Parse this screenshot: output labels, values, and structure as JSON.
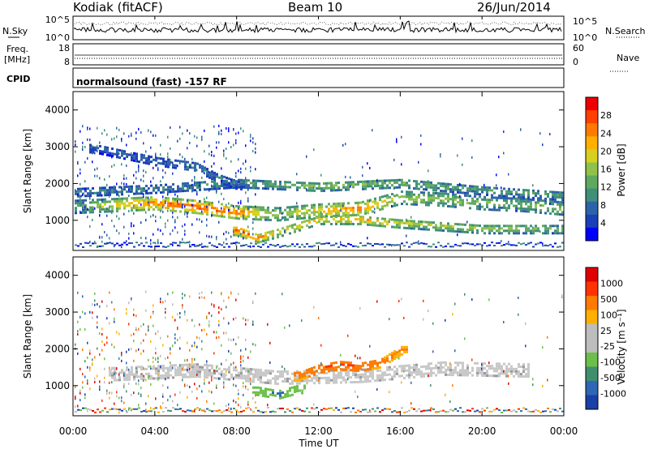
{
  "header": {
    "station": "Kodiak (fitACF)",
    "beam": "Beam 10",
    "date": "26/Jun/2014"
  },
  "noise_panel": {
    "left_label": "N.Sky",
    "right_label": "N.Search",
    "left_ticks": [
      "10^5",
      "10^0"
    ],
    "right_ticks": [
      "10^5",
      "10^0"
    ]
  },
  "freq_panel": {
    "left_label_1": "Freq.",
    "left_label_2": "[MHz]",
    "right_label": "Nave",
    "left_ticks": [
      "18",
      "8"
    ],
    "right_ticks": [
      "60",
      "0"
    ]
  },
  "cpid_panel": {
    "label": "CPID",
    "text": "normalsound (fast) -157 RF"
  },
  "x_axis": {
    "title": "Time UT",
    "ticks": [
      "00:00",
      "04:00",
      "08:00",
      "12:00",
      "16:00",
      "20:00",
      "00:00"
    ]
  },
  "power_panel": {
    "ylabel": "Slant Range [km]",
    "yticks": [
      "4000",
      "3000",
      "2000",
      "1000"
    ],
    "colorbar_title": "Power [dB]",
    "colorbar_ticks": [
      "28",
      "24",
      "20",
      "16",
      "12",
      "8",
      "4"
    ],
    "colors": [
      "#0000ff",
      "#1b3fb8",
      "#2e62a8",
      "#3f8f7a",
      "#5fa860",
      "#8fc24a",
      "#d8d020",
      "#ffb000",
      "#ff7a00",
      "#ff4000",
      "#ee0000"
    ]
  },
  "velocity_panel": {
    "ylabel": "Slant Range [km]",
    "yticks": [
      "4000",
      "3000",
      "2000",
      "1000"
    ],
    "colorbar_title": "Velocity [m s⁻¹]",
    "colorbar_ticks": [
      "1000",
      "500",
      "100",
      "25",
      "-25",
      "-100",
      "-500",
      "-1000"
    ],
    "colors": [
      "#1a3fa6",
      "#2f66b5",
      "#3f8f6e",
      "#6cc04a",
      "#bdbdbd",
      "#bdbdbd",
      "#ffb000",
      "#ff7a00",
      "#ff3300",
      "#e00000"
    ]
  },
  "chart_data": [
    {
      "type": "heatmap",
      "title": "Power [dB]",
      "xlabel": "Time UT",
      "ylabel": "Slant Range [km]",
      "x_range_hours": [
        0,
        24
      ],
      "ylim": [
        180,
        4500
      ],
      "color_range": [
        0,
        30
      ],
      "bands": [
        {
          "name": "main",
          "points": [
            [
              0,
              1400,
              10
            ],
            [
              2,
              1450,
              18
            ],
            [
              4,
              1500,
              22
            ],
            [
              6,
              1400,
              24
            ],
            [
              8,
              1250,
              22
            ],
            [
              10,
              1200,
              14
            ],
            [
              12,
              1300,
              18
            ],
            [
              14,
              1350,
              22
            ],
            [
              16,
              1650,
              14
            ],
            [
              18,
              1600,
              14
            ],
            [
              20,
              1500,
              12
            ],
            [
              22,
              1450,
              12
            ],
            [
              24,
              1350,
              14
            ]
          ]
        },
        {
          "name": "upper",
          "points": [
            [
              0,
              1800,
              8
            ],
            [
              4,
              1900,
              8
            ],
            [
              8,
              2050,
              10
            ],
            [
              12,
              1950,
              14
            ],
            [
              16,
              2050,
              12
            ],
            [
              20,
              1850,
              10
            ],
            [
              24,
              1700,
              10
            ]
          ]
        },
        {
          "name": "low",
          "points": [
            [
              8,
              750,
              24
            ],
            [
              9,
              550,
              22
            ],
            [
              10,
              700,
              16
            ],
            [
              12,
              1050,
              18
            ],
            [
              14,
              1050,
              20
            ],
            [
              16,
              950,
              16
            ],
            [
              20,
              800,
              14
            ],
            [
              24,
              800,
              12
            ]
          ]
        },
        {
          "name": "high",
          "points": [
            [
              1,
              3000,
              6
            ],
            [
              4,
              2650,
              6
            ],
            [
              6,
              2500,
              8
            ],
            [
              7,
              2200,
              8
            ],
            [
              8,
              2000,
              6
            ]
          ]
        }
      ]
    },
    {
      "type": "heatmap",
      "title": "Velocity [m s⁻¹]",
      "xlabel": "Time UT",
      "ylabel": "Slant Range [km]",
      "x_range_hours": [
        0,
        24
      ],
      "ylim": [
        180,
        4500
      ],
      "color_levels": [
        1000,
        500,
        100,
        25,
        -25,
        -100,
        -500,
        -1000
      ],
      "bands": [
        {
          "name": "ground",
          "points": [
            [
              2,
              1350,
              0
            ],
            [
              6,
              1450,
              0
            ],
            [
              10,
              1250,
              0
            ],
            [
              14,
              1300,
              0
            ],
            [
              18,
              1500,
              0
            ],
            [
              22,
              1450,
              0
            ]
          ]
        },
        {
          "name": "flow",
          "points": [
            [
              11,
              1300,
              -200
            ],
            [
              12,
              1500,
              -300
            ],
            [
              13,
              1600,
              -400
            ],
            [
              14,
              1550,
              -300
            ],
            [
              15,
              1650,
              -200
            ],
            [
              16,
              2000,
              -150
            ]
          ]
        },
        {
          "name": "returns",
          "points": [
            [
              9,
              900,
              200
            ],
            [
              10,
              800,
              300
            ],
            [
              11,
              950,
              150
            ]
          ]
        }
      ]
    }
  ]
}
